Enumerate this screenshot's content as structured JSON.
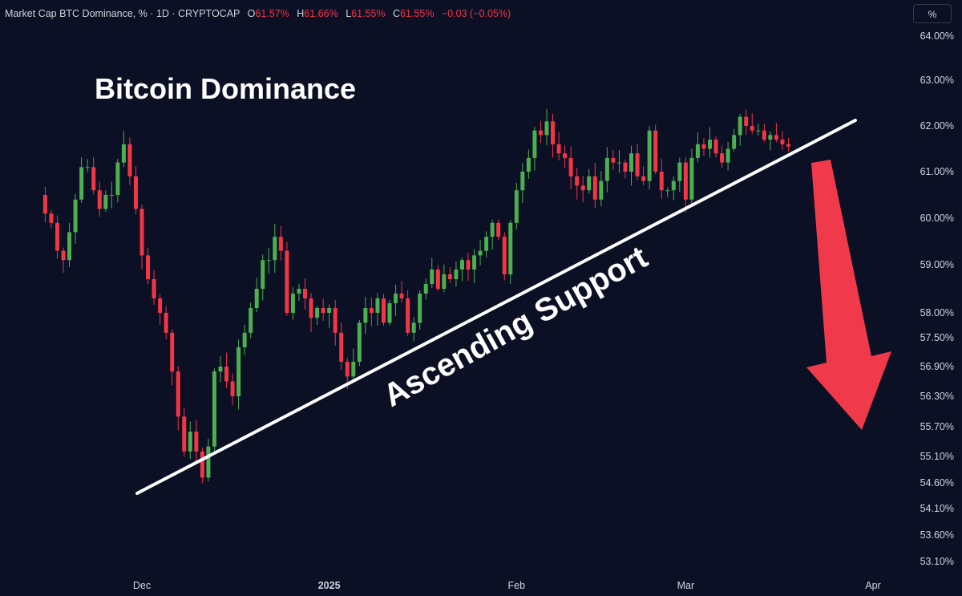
{
  "header": {
    "symbol": "Market Cap BTC Dominance, % · 1D · CRYPTOCAP",
    "open_label": "O",
    "open": "61.57%",
    "high_label": "H",
    "high": "61.66%",
    "low_label": "L",
    "low": "61.55%",
    "close_label": "C",
    "close": "61.55%",
    "change": "−0.03 (−0.05%)"
  },
  "scale_button": "%",
  "annotations": {
    "title": "Bitcoin Dominance",
    "trendline_label": "Ascending Support"
  },
  "colors": {
    "background": "#0b1025",
    "up": "#26a69a",
    "up_fill": "#4caf50",
    "down": "#f23645",
    "arrow": "#f03a4b",
    "line": "#ffffff"
  },
  "chart_data": {
    "type": "candlestick",
    "title": "Bitcoin Dominance",
    "y_unit": "%",
    "y_ticks": [
      "64.00%",
      "63.00%",
      "62.00%",
      "61.00%",
      "60.00%",
      "59.00%",
      "58.00%",
      "57.50%",
      "56.90%",
      "56.30%",
      "55.70%",
      "55.10%",
      "54.60%",
      "54.10%",
      "53.60%",
      "53.10%"
    ],
    "y_tick_values": [
      64.0,
      63.0,
      62.0,
      61.0,
      60.0,
      59.0,
      58.0,
      57.5,
      56.9,
      56.3,
      55.7,
      55.1,
      54.6,
      54.1,
      53.6,
      53.1
    ],
    "x_ticks": [
      "Dec",
      "2025",
      "Feb",
      "Mar",
      "Apr"
    ],
    "x_tick_dates": [
      "2024-12-01",
      "2025-01-01",
      "2025-02-01",
      "2025-03-01",
      "2025-04-01"
    ],
    "x_range": [
      "2024-10-27",
      "2025-04-06"
    ],
    "last_date": "2025-03-18",
    "closes": [
      60.1,
      59.9,
      59.3,
      59.1,
      59.7,
      60.4,
      61.1,
      61.1,
      60.6,
      60.2,
      60.5,
      60.5,
      61.2,
      61.6,
      60.9,
      60.2,
      59.2,
      58.7,
      58.3,
      58.0,
      57.6,
      56.8,
      55.9,
      55.2,
      55.6,
      55.2,
      54.7,
      55.3,
      56.8,
      56.9,
      56.6,
      56.3,
      57.3,
      57.6,
      58.1,
      58.5,
      59.1,
      59.1,
      59.6,
      59.3,
      58.0,
      58.4,
      58.5,
      58.3,
      57.9,
      58.1,
      58.0,
      58.1,
      57.6,
      57.0,
      56.7,
      57.0,
      57.8,
      58.1,
      58.0,
      58.3,
      57.8,
      58.2,
      58.4,
      58.3,
      57.6,
      57.8,
      58.4,
      58.6,
      58.9,
      58.5,
      58.8,
      58.7,
      58.9,
      59.1,
      58.9,
      59.2,
      59.3,
      59.6,
      59.9,
      59.6,
      58.8,
      59.9,
      60.6,
      61.0,
      61.3,
      61.9,
      61.8,
      62.1,
      61.6,
      61.4,
      61.3,
      60.9,
      60.7,
      60.6,
      60.9,
      60.4,
      60.8,
      61.3,
      61.2,
      61.2,
      61.0,
      61.4,
      60.9,
      60.8,
      61.9,
      61.0,
      60.6,
      60.6,
      60.8,
      61.2,
      60.4,
      61.3,
      61.6,
      61.5,
      61.7,
      61.4,
      61.2,
      61.5,
      61.8,
      62.2,
      62.0,
      61.9,
      61.9,
      61.7,
      61.8,
      61.7,
      61.6,
      61.55
    ]
  }
}
